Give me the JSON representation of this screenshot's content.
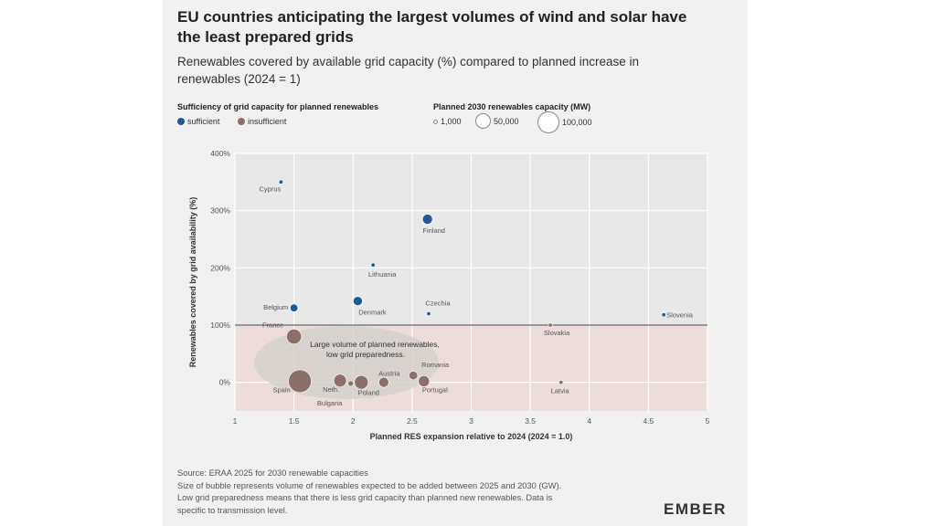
{
  "header": {
    "title_line1": "EU countries anticipating the largest volumes of wind and solar have",
    "title_line2": "the least prepared grids",
    "subtitle_line1": "Renewables covered by available grid capacity (%) compared to planned increase in",
    "subtitle_line2": "renewables (2024 = 1)"
  },
  "legend": {
    "sufficiency_title": "Sufficiency of grid capacity for planned renewables",
    "sufficient_label": "sufficient",
    "insufficient_label": "insufficient",
    "capacity_title": "Planned 2030 renewables capacity (MW)",
    "size_1": "1,000",
    "size_2": "50,000",
    "size_3": "100,000"
  },
  "colors": {
    "sufficient": "#1d5a9a",
    "insufficient": "#8a7068",
    "low_zone": "#ecdcda",
    "annotation_ellipse": "#d6d1cc"
  },
  "annotation": {
    "line1": "Large volume of planned renewables,",
    "line2": "low grid preparedness."
  },
  "chart_data": {
    "type": "scatter",
    "xlabel": "Planned RES expansion relative to 2024 (2024 = 1.0)",
    "ylabel": "Renewables covered by grid availability (%)",
    "xlim": [
      1,
      5
    ],
    "ylim": [
      -50,
      400
    ],
    "x_ticks": [
      "1",
      "1.5",
      "2",
      "2.5",
      "3",
      "3.5",
      "4",
      "4.5",
      "5"
    ],
    "y_ticks": [
      "0%",
      "100%",
      "200%",
      "300%",
      "400%"
    ],
    "threshold_y": 100,
    "points": [
      {
        "name": "Cyprus",
        "x": 1.39,
        "y": 350,
        "group": "sufficient",
        "size": 1000
      },
      {
        "name": "Finland",
        "x": 2.63,
        "y": 285,
        "group": "sufficient",
        "size": 20000
      },
      {
        "name": "Lithuania",
        "x": 2.17,
        "y": 205,
        "group": "sufficient",
        "size": 3000
      },
      {
        "name": "Belgium",
        "x": 1.5,
        "y": 130,
        "group": "sufficient",
        "size": 12000
      },
      {
        "name": "Denmark",
        "x": 2.04,
        "y": 142,
        "group": "sufficient",
        "size": 17000
      },
      {
        "name": "Czechia",
        "x": 2.64,
        "y": 120,
        "group": "sufficient",
        "size": 2000
      },
      {
        "name": "Slovenia",
        "x": 4.63,
        "y": 118,
        "group": "sufficient",
        "size": 1500
      },
      {
        "name": "Slovakia",
        "x": 3.67,
        "y": 100,
        "group": "insufficient",
        "size": 1200
      },
      {
        "name": "France",
        "x": 1.5,
        "y": 80,
        "group": "insufficient",
        "size": 45000
      },
      {
        "name": "Spain",
        "x": 1.55,
        "y": 2,
        "group": "insufficient",
        "size": 105000
      },
      {
        "name": "Neth.",
        "x": 1.89,
        "y": 3,
        "group": "insufficient",
        "size": 32000
      },
      {
        "name": "Bulgaria",
        "x": 1.98,
        "y": -2,
        "group": "insufficient",
        "size": 6000
      },
      {
        "name": "Poland",
        "x": 2.07,
        "y": 0,
        "group": "insufficient",
        "size": 38000
      },
      {
        "name": "Austria",
        "x": 2.26,
        "y": 0,
        "group": "insufficient",
        "size": 20000
      },
      {
        "name": "Romania",
        "x": 2.51,
        "y": 12,
        "group": "insufficient",
        "size": 15000
      },
      {
        "name": "Portugal",
        "x": 2.6,
        "y": 2,
        "group": "insufficient",
        "size": 25000
      },
      {
        "name": "Latvia",
        "x": 3.76,
        "y": 0,
        "group": "insufficient",
        "size": 1500
      }
    ]
  },
  "footer": {
    "line1": "Source: ERAA 2025 for 2030 renewable capacities",
    "line2": "Size of bubble represents volume of renewables expected to be added between 2025 and 2030 (GW).",
    "line3": "Low grid preparedness means that there is less grid capacity than planned new renewables. Data is",
    "line4": "specific to transmission level.",
    "logo": "EMBER"
  }
}
